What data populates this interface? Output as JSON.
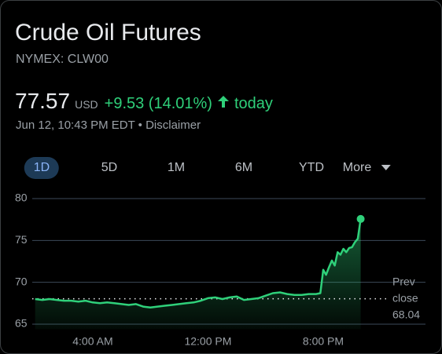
{
  "header": {
    "title": "Crude Oil Futures",
    "exchange": "NYMEX: CLW00",
    "price": "77.57",
    "currency": "USD",
    "change": "+9.53 (14.01%)",
    "period": "today",
    "timestamp": "Jun 12, 10:43 PM EDT",
    "separator": "•",
    "disclaimer": "Disclaimer"
  },
  "tabs": [
    "1D",
    "5D",
    "1M",
    "6M",
    "YTD",
    "More"
  ],
  "chart_data": {
    "type": "line",
    "color": "#2fd07a",
    "x": [
      0,
      0.5,
      1,
      1.5,
      2,
      2.5,
      3,
      3.5,
      4,
      4.5,
      5,
      5.5,
      6,
      6.5,
      7,
      7.5,
      8,
      8.5,
      9,
      9.5,
      10,
      10.5,
      11,
      11.5,
      12,
      12.5,
      13,
      13.5,
      14,
      14.5,
      15,
      15.5,
      16,
      16.5,
      17,
      17.5,
      18,
      18.5,
      19,
      19.5,
      19.8,
      20,
      20.2,
      20.4,
      20.6,
      20.8,
      21,
      21.2,
      21.4,
      21.6,
      21.8,
      22,
      22.2,
      22.4,
      22.6
    ],
    "values": [
      68.0,
      67.9,
      68.0,
      67.9,
      67.8,
      67.8,
      67.7,
      67.8,
      67.6,
      67.5,
      67.6,
      67.5,
      67.4,
      67.3,
      67.4,
      67.1,
      67.0,
      67.1,
      67.2,
      67.3,
      67.4,
      67.5,
      67.6,
      67.8,
      68.1,
      68.2,
      68.0,
      68.2,
      68.3,
      67.9,
      68.0,
      68.1,
      68.4,
      68.7,
      68.8,
      68.6,
      68.5,
      68.5,
      68.6,
      68.6,
      68.7,
      71.5,
      70.9,
      71.8,
      72.6,
      72.0,
      73.6,
      73.3,
      74.0,
      73.6,
      74.1,
      74.2,
      74.8,
      75.2,
      77.57
    ],
    "xlim": [
      -0.2,
      27.1
    ],
    "xticks": [
      {
        "value": 4,
        "label": "4:00 AM"
      },
      {
        "value": 12,
        "label": "12:00 PM"
      },
      {
        "value": 20,
        "label": "8:00 PM"
      }
    ],
    "ylim": [
      64.4,
      80.6
    ],
    "yticks": [
      65,
      70,
      75,
      80
    ],
    "grid": true,
    "prev_close": 68.04,
    "prev_close_label": [
      "Prev",
      "close"
    ]
  }
}
